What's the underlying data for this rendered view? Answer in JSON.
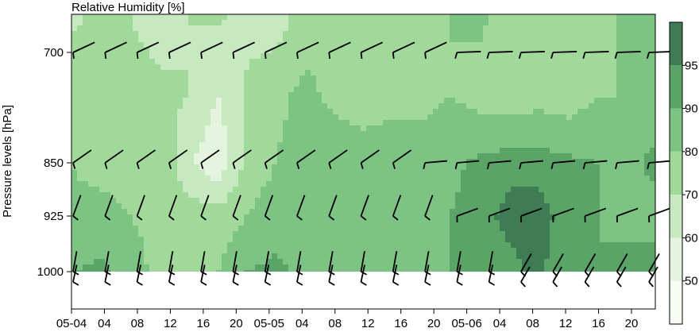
{
  "chart_data": {
    "type": "heatmap",
    "title": "Relative Humidity [%]",
    "ylabel": "Pressure levels [hPa]",
    "y_ticks": [
      {
        "label": "700",
        "value": 700
      },
      {
        "label": "850",
        "value": 850
      },
      {
        "label": "925",
        "value": 925
      },
      {
        "label": "1000",
        "value": 1000
      }
    ],
    "x_tick_labels": [
      "05-04",
      "04",
      "08",
      "12",
      "16",
      "20",
      "05-05",
      "04",
      "08",
      "12",
      "16",
      "20",
      "05-06",
      "04",
      "08",
      "12",
      "16",
      "20"
    ],
    "colorbar": {
      "min": 40,
      "max": 100,
      "labels": [
        "50",
        "60",
        "70",
        "80",
        "90",
        "95"
      ],
      "levels": [
        50,
        60,
        70,
        80,
        90,
        95
      ],
      "colors": [
        "#f7fcf5",
        "#e4f4df",
        "#c7e9c0",
        "#a1d99b",
        "#7cc384",
        "#5aa468",
        "#3f7b53"
      ]
    },
    "levels": [
      700,
      775,
      850,
      925,
      1000
    ],
    "rh_grid": [
      [
        68,
        72,
        70,
        66,
        70,
        72,
        66,
        64,
        76,
        80,
        75,
        72,
        74,
        80,
        82,
        76,
        72,
        74,
        76,
        82,
        82
      ],
      [
        76,
        78,
        74,
        72,
        70,
        60,
        72,
        78,
        82,
        78,
        72,
        74,
        76,
        80,
        76,
        74,
        76,
        74,
        80,
        80,
        84
      ],
      [
        80,
        76,
        74,
        80,
        62,
        52,
        72,
        80,
        84,
        86,
        88,
        90,
        86,
        88,
        92,
        94,
        94,
        92,
        90,
        88,
        92
      ],
      [
        82,
        84,
        80,
        76,
        76,
        74,
        80,
        86,
        88,
        84,
        80,
        84,
        90,
        90,
        94,
        96,
        96,
        94,
        90,
        88,
        86
      ],
      [
        90,
        92,
        86,
        76,
        78,
        80,
        90,
        92,
        88,
        80,
        84,
        86,
        88,
        90,
        92,
        94,
        96,
        92,
        90,
        92,
        94
      ]
    ],
    "wind_barbs": {
      "rows": [
        700,
        850,
        925,
        1000,
        1010
      ],
      "directions_note": "barbs drawn per time/level"
    }
  }
}
